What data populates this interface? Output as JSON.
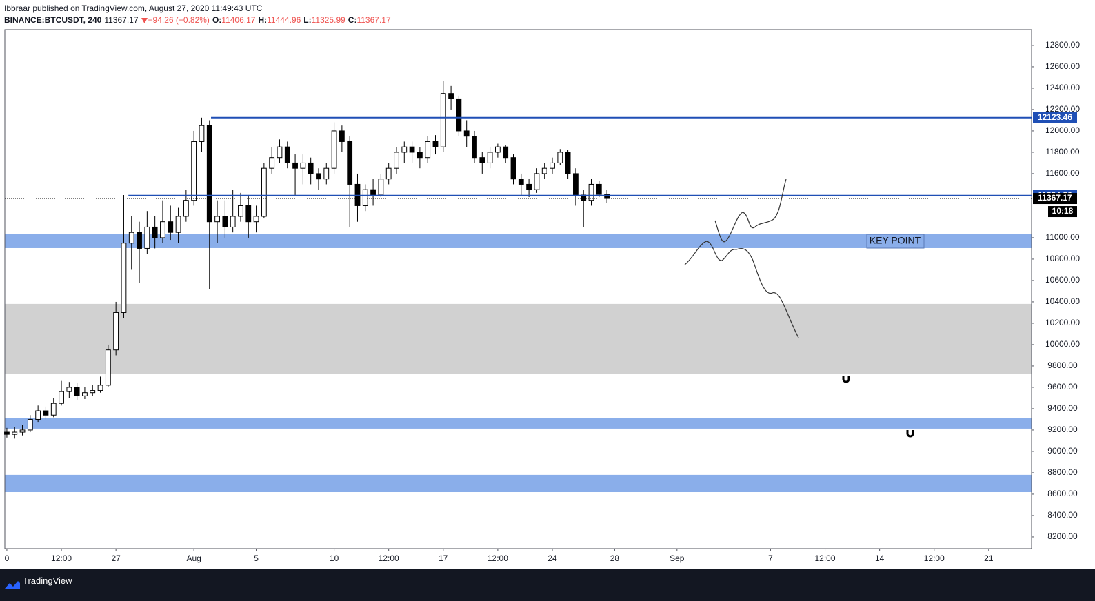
{
  "chart_data": {
    "type": "candlestick",
    "title": "Ibbraar published on TradingView.com, August 27, 2020 11:49:43 UTC",
    "symbol": "BINANCE:BTCUSDT, 240",
    "change": "−94.26 (−0.82%)",
    "ohlc_labels": [
      "O:",
      "H:",
      "L:",
      "C:"
    ],
    "x": [
      0,
      0.5,
      1,
      1.5,
      2,
      2.5,
      3,
      3.5,
      4,
      4.5,
      5,
      5.5,
      6,
      6.5,
      7,
      7.5,
      8,
      8.5,
      9,
      9.5,
      10,
      10.5,
      11,
      11.5,
      12,
      12.5,
      13,
      13.5,
      14,
      14.5,
      15,
      15.5,
      16,
      16.5,
      17,
      17.5,
      18,
      18.5,
      19,
      19.5,
      20,
      20.5,
      21,
      21.5,
      22,
      22.5,
      23,
      23.5,
      24,
      24.5,
      25,
      25.5,
      26,
      26.5,
      27,
      27.5,
      28,
      28.5,
      29,
      29.5,
      30,
      30.5,
      31,
      31.5,
      32,
      32.5,
      33,
      33.5,
      34,
      34.5,
      35,
      35.5,
      36,
      36.5,
      37,
      37.5,
      38,
      38.5
    ],
    "open": [
      9180,
      9160,
      9180,
      9200,
      9300,
      9380,
      9340,
      9450,
      9560,
      9600,
      9520,
      9550,
      9570,
      9620,
      9950,
      10300,
      10950,
      11050,
      10900,
      11100,
      11000,
      11150,
      11050,
      11200,
      11350,
      11900,
      12050,
      11150,
      11200,
      11100,
      11200,
      11300,
      11150,
      11200,
      11650,
      11750,
      11850,
      11700,
      11650,
      11700,
      11600,
      11550,
      11650,
      12000,
      11900,
      11500,
      11300,
      11450,
      11400,
      11550,
      11650,
      11800,
      11850,
      11800,
      11750,
      11900,
      11850,
      12350,
      12300,
      12000,
      11950,
      11750,
      11700,
      11800,
      11850,
      11750,
      11550,
      11500,
      11450,
      11600,
      11650,
      11700,
      11800,
      11600,
      11400,
      11350,
      11500,
      11406.17
    ],
    "high": [
      9220,
      9230,
      9250,
      9340,
      9430,
      9420,
      9500,
      9660,
      9650,
      9640,
      9600,
      9620,
      9700,
      10000,
      10400,
      11400,
      11200,
      11150,
      11250,
      11200,
      11350,
      11300,
      11280,
      11450,
      12000,
      12123.46,
      12100,
      11350,
      11350,
      11450,
      11420,
      11400,
      11300,
      11700,
      11850,
      11920,
      11900,
      11780,
      11780,
      11750,
      11650,
      11700,
      12080,
      12050,
      11950,
      11600,
      11500,
      11550,
      11600,
      11700,
      11850,
      11900,
      11900,
      11850,
      11950,
      11960,
      12470,
      12420,
      12330,
      12100,
      12000,
      11800,
      11850,
      11880,
      11870,
      11780,
      11600,
      11550,
      11650,
      11700,
      11750,
      11830,
      11820,
      11650,
      11450,
      11550,
      11530,
      11444.96
    ],
    "low": [
      9130,
      9120,
      9150,
      9180,
      9270,
      9300,
      9320,
      9430,
      9500,
      9480,
      9490,
      9520,
      9550,
      9600,
      9900,
      10250,
      10700,
      10580,
      10850,
      10900,
      10950,
      10980,
      10950,
      11150,
      11300,
      11800,
      10520,
      10950,
      11000,
      11050,
      11150,
      11000,
      11050,
      11180,
      11600,
      11700,
      11650,
      11400,
      11500,
      11500,
      11450,
      11500,
      11600,
      11800,
      11100,
      11150,
      11250,
      11300,
      11380,
      11500,
      11600,
      11700,
      11700,
      11650,
      11700,
      11780,
      11800,
      12200,
      11950,
      11850,
      11700,
      11600,
      11650,
      11750,
      11700,
      11500,
      11400,
      11380,
      11420,
      11550,
      11600,
      11680,
      11550,
      11300,
      11100,
      11300,
      11380,
      11325.99
    ],
    "close": [
      9160,
      9180,
      9200,
      9300,
      9380,
      9340,
      9450,
      9560,
      9600,
      9520,
      9550,
      9570,
      9620,
      9950,
      10300,
      10950,
      11050,
      10900,
      11100,
      11000,
      11150,
      11050,
      11200,
      11350,
      11900,
      12050,
      11150,
      11200,
      11100,
      11200,
      11300,
      11150,
      11200,
      11650,
      11750,
      11850,
      11700,
      11650,
      11700,
      11600,
      11550,
      11650,
      12000,
      11900,
      11500,
      11300,
      11450,
      11400,
      11550,
      11650,
      11800,
      11850,
      11800,
      11750,
      11900,
      11850,
      12350,
      12300,
      12000,
      11950,
      11750,
      11700,
      11800,
      11850,
      11750,
      11550,
      11500,
      11450,
      11600,
      11650,
      11700,
      11800,
      11600,
      11400,
      11350,
      11500,
      11406.17,
      11367.17
    ],
    "up_color": "#ffffff",
    "down_color": "#000000",
    "xlim": [
      -0.13,
      65.75
    ],
    "ylim": [
      8090,
      12948
    ],
    "xticks": [
      0,
      {
        "value": 3.5,
        "label": "12:00"
      },
      {
        "value": 7,
        "label": "27"
      },
      {
        "value": 12,
        "label": "Aug"
      },
      {
        "value": 16,
        "label": "5"
      },
      {
        "value": 21,
        "label": "10"
      },
      {
        "value": 24.5,
        "label": "12:00"
      },
      {
        "value": 28,
        "label": "17"
      },
      {
        "value": 31.5,
        "label": "12:00"
      },
      {
        "value": 35,
        "label": "24"
      },
      {
        "value": 39,
        "label": "28"
      },
      {
        "value": 43,
        "label": "Sep"
      },
      {
        "value": 49,
        "label": "7"
      },
      {
        "value": 52.5,
        "label": "12:00"
      },
      {
        "value": 56,
        "label": "14"
      },
      {
        "value": 59.5,
        "label": "12:00"
      },
      {
        "value": 63,
        "label": "21"
      }
    ],
    "yticks": [
      {
        "value": 8200,
        "label": "8200.00"
      },
      {
        "value": 8400,
        "label": "8400.00"
      },
      {
        "value": 8600,
        "label": "8600.00"
      },
      {
        "value": 8800,
        "label": "8800.00"
      },
      {
        "value": 9000,
        "label": "9000.00"
      },
      {
        "value": 9200,
        "label": "9200.00"
      },
      {
        "value": 9400,
        "label": "9400.00"
      },
      {
        "value": 9600,
        "label": "9600.00"
      },
      {
        "value": 9800,
        "label": "9800.00"
      },
      {
        "value": 10000,
        "label": "10000.00"
      },
      {
        "value": 10200,
        "label": "10200.00"
      },
      {
        "value": 10400,
        "label": "10400.00"
      },
      {
        "value": 10600,
        "label": "10600.00"
      },
      {
        "value": 10800,
        "label": "10800.00"
      },
      {
        "value": 11000,
        "label": "11000.00"
      },
      {
        "value": 11600,
        "label": "11600.00"
      },
      {
        "value": 11800,
        "label": "11800.00"
      },
      {
        "value": 12000,
        "label": "12000.00"
      },
      {
        "value": 12200,
        "label": "12200.00"
      },
      {
        "value": 12400,
        "label": "12400.00"
      },
      {
        "value": 12600,
        "label": "12600.00"
      },
      {
        "value": 12800,
        "label": "12800.00"
      }
    ],
    "grid": false,
    "zones": [
      {
        "from": 10903,
        "to": 11032,
        "color": "#8aaeea"
      },
      {
        "from": 9723,
        "to": 10381,
        "color": "#d1d1d1"
      },
      {
        "from": 9213,
        "to": 9310,
        "color": "#8aaeea"
      },
      {
        "from": 8619,
        "to": 8781,
        "color": "#8aaeea"
      }
    ],
    "price_lines": [
      {
        "value": 12123.46,
        "start": 13.1,
        "color": "#1f4fb5"
      },
      {
        "value": 11394.86,
        "start": 7.8,
        "color": "#1f4fb5"
      }
    ],
    "annotation": "KEY POINT",
    "countdown": "10:18",
    "brand": "TradingView"
  }
}
